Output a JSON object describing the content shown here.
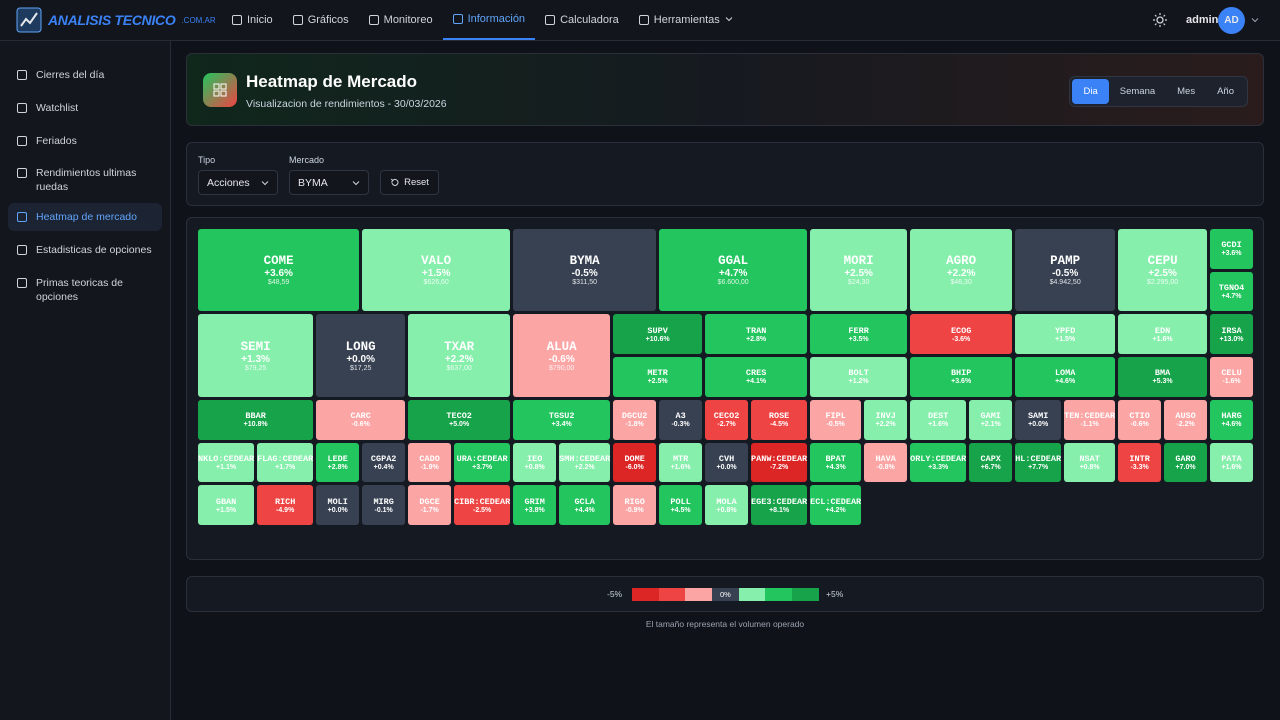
{
  "nav": {
    "brand": "ANALISIS TECNICO",
    "brand_suffix": ".COM.AR",
    "items": [
      "Inicio",
      "Gráficos",
      "Monitoreo",
      "Información",
      "Calculadora",
      "Herramientas"
    ],
    "active": 3,
    "user": "admin",
    "avatar": "AD"
  },
  "sidebar": {
    "items": [
      "Cierres del día",
      "Watchlist",
      "Feriados",
      "Rendimientos ultimas ruedas",
      "Heatmap de mercado",
      "Estadisticas de opciones",
      "Primas teoricas de opciones"
    ],
    "active": 4
  },
  "header": {
    "title": "Heatmap de Mercado",
    "subtitle": "Visualizacion de rendimientos - 30/03/2026",
    "periods": [
      "Dia",
      "Semana",
      "Mes",
      "Año"
    ],
    "active_period": 0
  },
  "filters": {
    "tipo_label": "Tipo",
    "tipo": "Acciones",
    "mercado_label": "Mercado",
    "mercado": "BYMA",
    "reset": "Reset"
  },
  "heatmap": {
    "tiles": [
      {
        "ticker": "COME",
        "change": "+3.6%",
        "price": "$48,59",
        "color": "#22c55e"
      },
      {
        "ticker": "VALO",
        "change": "+1.5%",
        "price": "$626,60",
        "color": "#86efac"
      },
      {
        "ticker": "BYMA",
        "change": "-0.5%",
        "price": "$311,50",
        "color": "#374151"
      },
      {
        "ticker": "GGAL",
        "change": "+4.7%",
        "price": "$6.600,00",
        "color": "#22c55e"
      },
      {
        "ticker": "MORI",
        "change": "+2.5%",
        "price": "$24,30",
        "color": "#86efac"
      },
      {
        "ticker": "AGRO",
        "change": "+2.2%",
        "price": "$46,30",
        "color": "#86efac"
      },
      {
        "ticker": "PAMP",
        "change": "-0.5%",
        "price": "$4.942,50",
        "color": "#374151"
      },
      {
        "ticker": "CEPU",
        "change": "+2.5%",
        "price": "$2.295,00",
        "color": "#86efac"
      },
      {
        "ticker": "GCDI",
        "change": "+3.6%",
        "color": "#22c55e"
      },
      {
        "ticker": "TGNO4",
        "change": "+4.7%",
        "color": "#22c55e"
      },
      {
        "ticker": "SEMI",
        "change": "+1.3%",
        "price": "$79,25",
        "color": "#86efac"
      },
      {
        "ticker": "LONG",
        "change": "+0.0%",
        "price": "$17,25",
        "color": "#374151"
      },
      {
        "ticker": "TXAR",
        "change": "+2.2%",
        "price": "$637,00",
        "color": "#86efac"
      },
      {
        "ticker": "ALUA",
        "change": "-0.6%",
        "price": "$790,00",
        "color": "#fca5a5"
      },
      {
        "ticker": "SUPV",
        "change": "+10.6%",
        "color": "#16a34a"
      },
      {
        "ticker": "TRAN",
        "change": "+2.8%",
        "color": "#22c55e"
      },
      {
        "ticker": "FERR",
        "change": "+3.5%",
        "color": "#22c55e"
      },
      {
        "ticker": "ECOG",
        "change": "-3.6%",
        "color": "#ef4444"
      },
      {
        "ticker": "YPFD",
        "change": "+1.5%",
        "color": "#86efac"
      },
      {
        "ticker": "EDN",
        "change": "+1.6%",
        "color": "#86efac"
      },
      {
        "ticker": "IRSA",
        "change": "+13.0%",
        "color": "#16a34a"
      },
      {
        "ticker": "METR",
        "change": "+2.5%",
        "color": "#22c55e"
      },
      {
        "ticker": "CRES",
        "change": "+4.1%",
        "color": "#22c55e"
      },
      {
        "ticker": "BOLT",
        "change": "+1.2%",
        "color": "#86efac"
      },
      {
        "ticker": "BHIP",
        "change": "+3.6%",
        "color": "#22c55e"
      },
      {
        "ticker": "LOMA",
        "change": "+4.6%",
        "color": "#22c55e"
      },
      {
        "ticker": "BMA",
        "change": "+5.3%",
        "color": "#16a34a"
      },
      {
        "ticker": "CELU",
        "change": "-1.6%",
        "color": "#fca5a5"
      },
      {
        "ticker": "BBAR",
        "change": "+10.8%",
        "color": "#16a34a"
      },
      {
        "ticker": "CARC",
        "change": "-0.6%",
        "color": "#fca5a5"
      },
      {
        "ticker": "TECO2",
        "change": "+5.0%",
        "color": "#16a34a"
      },
      {
        "ticker": "TGSU2",
        "change": "+3.4%",
        "color": "#22c55e"
      },
      {
        "ticker": "DGCU2",
        "change": "-1.8%",
        "color": "#fca5a5"
      },
      {
        "ticker": "A3",
        "change": "-0.3%",
        "color": "#374151"
      },
      {
        "ticker": "CECO2",
        "change": "-2.7%",
        "color": "#ef4444"
      },
      {
        "ticker": "ROSE",
        "change": "-4.5%",
        "color": "#ef4444"
      },
      {
        "ticker": "FIPL",
        "change": "-0.5%",
        "color": "#fca5a5"
      },
      {
        "ticker": "INVJ",
        "change": "+2.2%",
        "color": "#86efac"
      },
      {
        "ticker": "DEST",
        "change": "+1.6%",
        "color": "#86efac"
      },
      {
        "ticker": "GAMI",
        "change": "+2.1%",
        "color": "#86efac"
      },
      {
        "ticker": "SAMI",
        "change": "+0.0%",
        "color": "#374151"
      },
      {
        "ticker": "TEN:CEDEAR",
        "change": "-1.1%",
        "color": "#fca5a5"
      },
      {
        "ticker": "CTIO",
        "change": "-0.6%",
        "color": "#fca5a5"
      },
      {
        "ticker": "AUSO",
        "change": "-2.2%",
        "color": "#fca5a5"
      },
      {
        "ticker": "HARG",
        "change": "+4.6%",
        "color": "#22c55e"
      },
      {
        "ticker": "NKLO:CEDEAR",
        "change": "+1.1%",
        "color": "#86efac"
      },
      {
        "ticker": "FLAG:CEDEAR",
        "change": "+1.7%",
        "color": "#86efac"
      },
      {
        "ticker": "LEDE",
        "change": "+2.8%",
        "color": "#22c55e"
      },
      {
        "ticker": "CGPA2",
        "change": "+0.4%",
        "color": "#374151"
      },
      {
        "ticker": "CADO",
        "change": "-1.9%",
        "color": "#fca5a5"
      },
      {
        "ticker": "URA:CEDEAR",
        "change": "+3.7%",
        "color": "#22c55e"
      },
      {
        "ticker": "IEO",
        "change": "+0.8%",
        "color": "#86efac"
      },
      {
        "ticker": "SMH:CEDEAR",
        "change": "+2.2%",
        "color": "#86efac"
      },
      {
        "ticker": "DOME",
        "change": "-6.0%",
        "color": "#dc2626"
      },
      {
        "ticker": "MTR",
        "change": "+1.6%",
        "color": "#86efac"
      },
      {
        "ticker": "CVH",
        "change": "+0.0%",
        "color": "#374151"
      },
      {
        "ticker": "PANW:CEDEAR",
        "change": "-7.2%",
        "color": "#dc2626"
      },
      {
        "ticker": "BPAT",
        "change": "+4.3%",
        "color": "#22c55e"
      },
      {
        "ticker": "HAVA",
        "change": "-0.8%",
        "color": "#fca5a5"
      },
      {
        "ticker": "ORLY:CEDEAR",
        "change": "+3.3%",
        "color": "#22c55e"
      },
      {
        "ticker": "CAPX",
        "change": "+6.7%",
        "color": "#16a34a"
      },
      {
        "ticker": "HL:CEDEAR",
        "change": "+7.7%",
        "color": "#16a34a"
      },
      {
        "ticker": "NSAT",
        "change": "+0.8%",
        "color": "#86efac"
      },
      {
        "ticker": "INTR",
        "change": "-3.3%",
        "color": "#ef4444"
      },
      {
        "ticker": "GARO",
        "change": "+7.0%",
        "color": "#16a34a"
      },
      {
        "ticker": "PATA",
        "change": "+1.6%",
        "color": "#86efac"
      },
      {
        "ticker": "GBAN",
        "change": "+1.5%",
        "color": "#86efac"
      },
      {
        "ticker": "RICH",
        "change": "-4.9%",
        "color": "#ef4444"
      },
      {
        "ticker": "MOLI",
        "change": "+0.0%",
        "color": "#374151"
      },
      {
        "ticker": "MIRG",
        "change": "-0.1%",
        "color": "#374151"
      },
      {
        "ticker": "DGCE",
        "change": "-1.7%",
        "color": "#fca5a5"
      },
      {
        "ticker": "CIBR:CEDEAR",
        "change": "-2.5%",
        "color": "#ef4444"
      },
      {
        "ticker": "GRIM",
        "change": "+3.8%",
        "color": "#22c55e"
      },
      {
        "ticker": "GCLA",
        "change": "+4.4%",
        "color": "#22c55e"
      },
      {
        "ticker": "RIGO",
        "change": "-0.9%",
        "color": "#fca5a5"
      },
      {
        "ticker": "POLL",
        "change": "+4.5%",
        "color": "#22c55e"
      },
      {
        "ticker": "MOLA",
        "change": "+0.8%",
        "color": "#86efac"
      },
      {
        "ticker": "EGE3:CEDEAR",
        "change": "+8.1%",
        "color": "#16a34a"
      },
      {
        "ticker": "ECL:CEDEAR",
        "change": "+4.2%",
        "color": "#22c55e"
      }
    ]
  },
  "legend": {
    "low": "-5%",
    "mid": "0%",
    "high": "+5%",
    "colors": [
      "#dc2626",
      "#ef4444",
      "#fca5a5",
      "#374151",
      "#86efac",
      "#22c55e",
      "#16a34a"
    ],
    "caption": "El tamaño representa el volumen operado"
  }
}
